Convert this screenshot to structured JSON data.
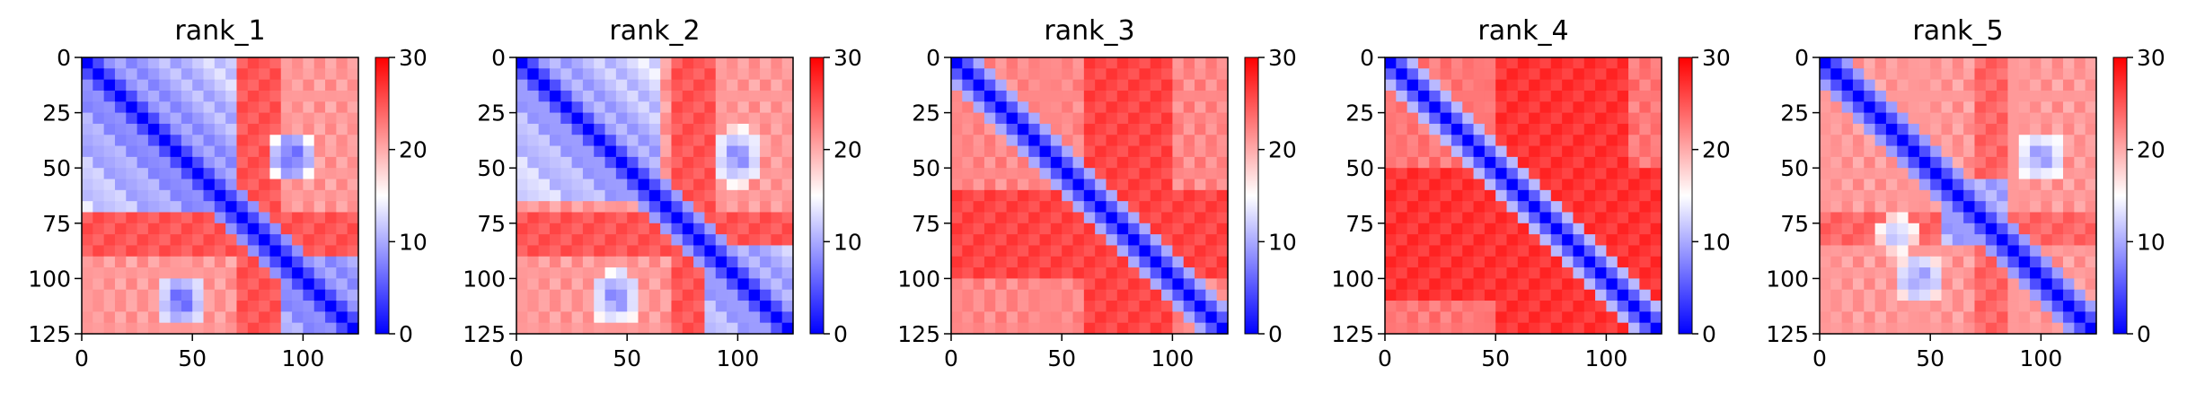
{
  "chart_data": [
    {
      "type": "heatmap",
      "title": "rank_1",
      "x_ticks": [
        "0",
        "50",
        "100"
      ],
      "y_ticks": [
        "0",
        "25",
        "50",
        "75",
        "100",
        "125"
      ],
      "x_range": [
        0,
        125
      ],
      "y_range": [
        0,
        125
      ],
      "colorbar_ticks": [
        "0",
        "10",
        "20",
        "30"
      ],
      "color_range": [
        0,
        30
      ],
      "colormap": [
        "#0000ff",
        "#ffffff",
        "#ff0000"
      ],
      "pattern": {
        "diag_width": 14,
        "blocks": [
          [
            0,
            68,
            6
          ],
          [
            88,
            125,
            6
          ]
        ],
        "blue_off_diag": [
          [
            45,
            110,
            10,
            12,
            5
          ],
          [
            95,
            45,
            10,
            12,
            5
          ]
        ],
        "red_bands": [
          [
            70,
            88,
            24
          ]
        ],
        "base": 21
      }
    },
    {
      "type": "heatmap",
      "title": "rank_2",
      "x_ticks": [
        "0",
        "50",
        "100"
      ],
      "y_ticks": [
        "0",
        "25",
        "50",
        "75",
        "100",
        "125"
      ],
      "x_range": [
        0,
        125
      ],
      "y_range": [
        0,
        125
      ],
      "colorbar_ticks": [
        "0",
        "10",
        "20",
        "30"
      ],
      "color_range": [
        0,
        30
      ],
      "colormap": [
        "#0000ff",
        "#ffffff",
        "#ff0000"
      ],
      "pattern": {
        "diag_width": 13,
        "blocks": [
          [
            0,
            66,
            7
          ],
          [
            86,
            125,
            7
          ]
        ],
        "blue_off_diag": [
          [
            45,
            108,
            11,
            13,
            7
          ],
          [
            100,
            45,
            11,
            13,
            7
          ]
        ],
        "red_bands": [
          [
            68,
            88,
            24
          ]
        ],
        "base": 21
      }
    },
    {
      "type": "heatmap",
      "title": "rank_3",
      "x_ticks": [
        "0",
        "50",
        "100"
      ],
      "y_ticks": [
        "0",
        "25",
        "50",
        "75",
        "100",
        "125"
      ],
      "x_range": [
        0,
        125
      ],
      "y_range": [
        0,
        125
      ],
      "colorbar_ticks": [
        "0",
        "10",
        "20",
        "30"
      ],
      "color_range": [
        0,
        30
      ],
      "colormap": [
        "#0000ff",
        "#ffffff",
        "#ff0000"
      ],
      "pattern": {
        "diag_width": 12,
        "blocks": [],
        "blue_off_diag": [],
        "red_bands": [
          [
            60,
            100,
            25
          ]
        ],
        "base": 22
      }
    },
    {
      "type": "heatmap",
      "title": "rank_4",
      "x_ticks": [
        "0",
        "50",
        "100"
      ],
      "y_ticks": [
        "0",
        "25",
        "50",
        "75",
        "100",
        "125"
      ],
      "x_range": [
        0,
        125
      ],
      "y_range": [
        0,
        125
      ],
      "colorbar_ticks": [
        "0",
        "10",
        "20",
        "30"
      ],
      "color_range": [
        0,
        30
      ],
      "colormap": [
        "#0000ff",
        "#ffffff",
        "#ff0000"
      ],
      "pattern": {
        "diag_width": 11,
        "blocks": [],
        "blue_off_diag": [],
        "red_bands": [
          [
            50,
            110,
            26
          ]
        ],
        "base": 23
      }
    },
    {
      "type": "heatmap",
      "title": "rank_5",
      "x_ticks": [
        "0",
        "50",
        "100"
      ],
      "y_ticks": [
        "0",
        "25",
        "50",
        "75",
        "100",
        "125"
      ],
      "x_range": [
        0,
        125
      ],
      "y_range": [
        0,
        125
      ],
      "colorbar_ticks": [
        "0",
        "10",
        "20",
        "30"
      ],
      "color_range": [
        0,
        30
      ],
      "colormap": [
        "#0000ff",
        "#ffffff",
        "#ff0000"
      ],
      "pattern": {
        "diag_width": 13,
        "blocks": [
          [
            55,
            85,
            7
          ]
        ],
        "blue_off_diag": [
          [
            45,
            100,
            12,
            12,
            8
          ],
          [
            100,
            45,
            12,
            12,
            8
          ],
          [
            35,
            80,
            10,
            10,
            10
          ]
        ],
        "red_bands": [
          [
            70,
            85,
            23
          ]
        ],
        "base": 21
      }
    }
  ]
}
